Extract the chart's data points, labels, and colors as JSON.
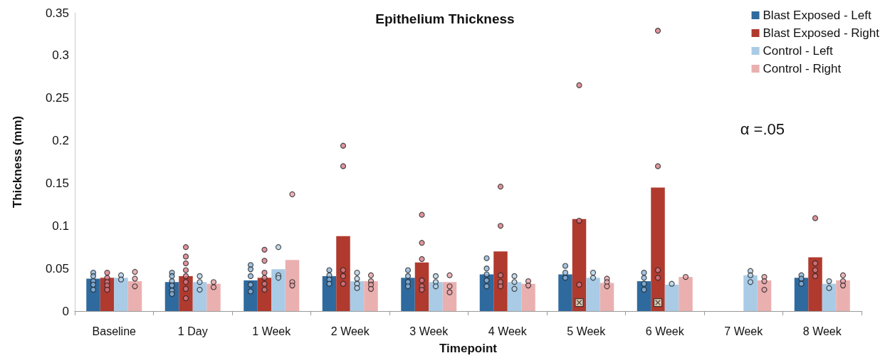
{
  "chart_data": {
    "type": "bar",
    "title": "Epithelium Thickness",
    "xlabel": "Timepoint",
    "ylabel": "Thickness (mm)",
    "categories": [
      "Baseline",
      "1 Day",
      "1 Week",
      "2 Week",
      "3 Week",
      "4 Week",
      "5 Week",
      "6 Week",
      "7 Week",
      "8 Week"
    ],
    "series": [
      {
        "name": "Blast Exposed - Left",
        "color": "#2e6a9e",
        "values": [
          0.038,
          0.034,
          0.036,
          0.041,
          0.039,
          0.043,
          0.043,
          0.035,
          null,
          0.039
        ]
      },
      {
        "name": "Blast Exposed - Right",
        "color": "#b03a2e",
        "values": [
          0.039,
          0.041,
          0.039,
          0.088,
          0.057,
          0.07,
          0.108,
          0.145,
          null,
          0.063
        ]
      },
      {
        "name": "Control - Left",
        "color": "#a9cbe6",
        "values": [
          0.039,
          0.034,
          0.049,
          0.035,
          0.034,
          0.034,
          0.039,
          0.031,
          0.042,
          0.032
        ]
      },
      {
        "name": "Control - Right",
        "color": "#eab0b0",
        "values": [
          0.035,
          0.032,
          0.06,
          0.035,
          0.034,
          0.032,
          0.033,
          0.04,
          0.036,
          0.036
        ]
      },
      {
        "type": "scatter",
        "color": "#8fb6dc",
        "x": [
          "Baseline",
          "Baseline",
          "Baseline",
          "Baseline",
          "Baseline",
          "1 Day",
          "1 Day",
          "1 Day",
          "1 Day",
          "1 Day",
          "1 Day",
          "1 Week",
          "1 Week",
          "1 Week",
          "1 Week",
          "1 Week",
          "2 Week",
          "2 Week",
          "2 Week",
          "2 Week",
          "3 Week",
          "3 Week",
          "3 Week",
          "3 Week",
          "4 Week",
          "4 Week",
          "4 Week",
          "4 Week",
          "4 Week",
          "5 Week",
          "5 Week",
          "5 Week",
          "6 Week",
          "6 Week",
          "6 Week",
          "6 Week",
          "8 Week",
          "8 Week",
          "8 Week"
        ],
        "values": [
          0.045,
          0.041,
          0.035,
          0.031,
          0.025,
          0.045,
          0.041,
          0.035,
          0.03,
          0.024,
          0.02,
          0.054,
          0.049,
          0.041,
          0.031,
          0.023,
          0.048,
          0.042,
          0.037,
          0.032,
          0.048,
          0.041,
          0.034,
          0.029,
          0.062,
          0.05,
          0.043,
          0.036,
          0.029,
          0.053,
          0.045,
          0.039,
          0.045,
          0.039,
          0.032,
          0.025,
          0.042,
          0.038,
          0.032
        ]
      },
      {
        "type": "scatter",
        "color": "#d97a85",
        "x": [
          "Baseline",
          "Baseline",
          "Baseline",
          "Baseline",
          "Baseline",
          "1 Day",
          "1 Day",
          "1 Day",
          "1 Day",
          "1 Day",
          "1 Day",
          "1 Day",
          "1 Day",
          "1 Week",
          "1 Week",
          "1 Week",
          "1 Week",
          "1 Week",
          "1 Week",
          "2 Week",
          "2 Week",
          "2 Week",
          "2 Week",
          "2 Week",
          "3 Week",
          "3 Week",
          "3 Week",
          "3 Week",
          "3 Week",
          "3 Week",
          "4 Week",
          "4 Week",
          "4 Week",
          "4 Week",
          "4 Week",
          "5 Week",
          "5 Week",
          "5 Week",
          "6 Week",
          "6 Week",
          "6 Week",
          "6 Week",
          "8 Week",
          "8 Week",
          "8 Week",
          "8 Week"
        ],
        "values": [
          0.045,
          0.039,
          0.034,
          0.03,
          0.025,
          0.075,
          0.064,
          0.056,
          0.048,
          0.041,
          0.034,
          0.026,
          0.015,
          0.072,
          0.059,
          0.045,
          0.039,
          0.032,
          0.025,
          0.194,
          0.17,
          0.048,
          0.041,
          0.032,
          0.113,
          0.08,
          0.061,
          0.036,
          0.029,
          0.025,
          0.146,
          0.1,
          0.042,
          0.034,
          0.029,
          0.265,
          0.106,
          0.031,
          0.329,
          0.17,
          0.048,
          0.039,
          0.109,
          0.056,
          0.048,
          0.041
        ]
      },
      {
        "type": "scatter",
        "marker": "cross",
        "color": "#e8ecd0",
        "x": [
          "5 Week",
          "6 Week"
        ],
        "values": [
          0.01,
          0.01
        ]
      },
      {
        "type": "scatter",
        "color": "#b7d3ea",
        "x": [
          "Baseline",
          "Baseline",
          "1 Day",
          "1 Day",
          "1 Day",
          "1 Week",
          "1 Week",
          "1 Week",
          "2 Week",
          "2 Week",
          "2 Week",
          "2 Week",
          "3 Week",
          "3 Week",
          "3 Week",
          "4 Week",
          "4 Week",
          "4 Week",
          "5 Week",
          "5 Week",
          "6 Week",
          "7 Week",
          "7 Week",
          "7 Week",
          "8 Week",
          "8 Week"
        ],
        "values": [
          0.042,
          0.037,
          0.041,
          0.034,
          0.025,
          0.075,
          0.042,
          0.039,
          0.045,
          0.038,
          0.032,
          0.027,
          0.041,
          0.034,
          0.029,
          0.041,
          0.034,
          0.026,
          0.045,
          0.039,
          0.032,
          0.047,
          0.042,
          0.034,
          0.035,
          0.027
        ]
      },
      {
        "type": "scatter",
        "color": "#e9a3a8",
        "x": [
          "Baseline",
          "Baseline",
          "Baseline",
          "1 Day",
          "1 Day",
          "1 Week",
          "1 Week",
          "1 Week",
          "2 Week",
          "2 Week",
          "2 Week",
          "2 Week",
          "3 Week",
          "3 Week",
          "3 Week",
          "4 Week",
          "4 Week",
          "5 Week",
          "5 Week",
          "5 Week",
          "6 Week",
          "7 Week",
          "7 Week",
          "7 Week",
          "8 Week",
          "8 Week",
          "8 Week"
        ],
        "values": [
          0.046,
          0.038,
          0.029,
          0.034,
          0.028,
          0.137,
          0.034,
          0.03,
          0.042,
          0.035,
          0.031,
          0.026,
          0.042,
          0.029,
          0.022,
          0.035,
          0.03,
          0.038,
          0.034,
          0.029,
          0.04,
          0.04,
          0.035,
          0.025,
          0.042,
          0.035,
          0.03
        ]
      }
    ],
    "ylim": [
      0,
      0.35
    ],
    "yticks": [
      0,
      0.05,
      0.1,
      0.15,
      0.2,
      0.25,
      0.3,
      0.35
    ],
    "legend": "top right",
    "annotations": [
      "α =.05"
    ]
  }
}
